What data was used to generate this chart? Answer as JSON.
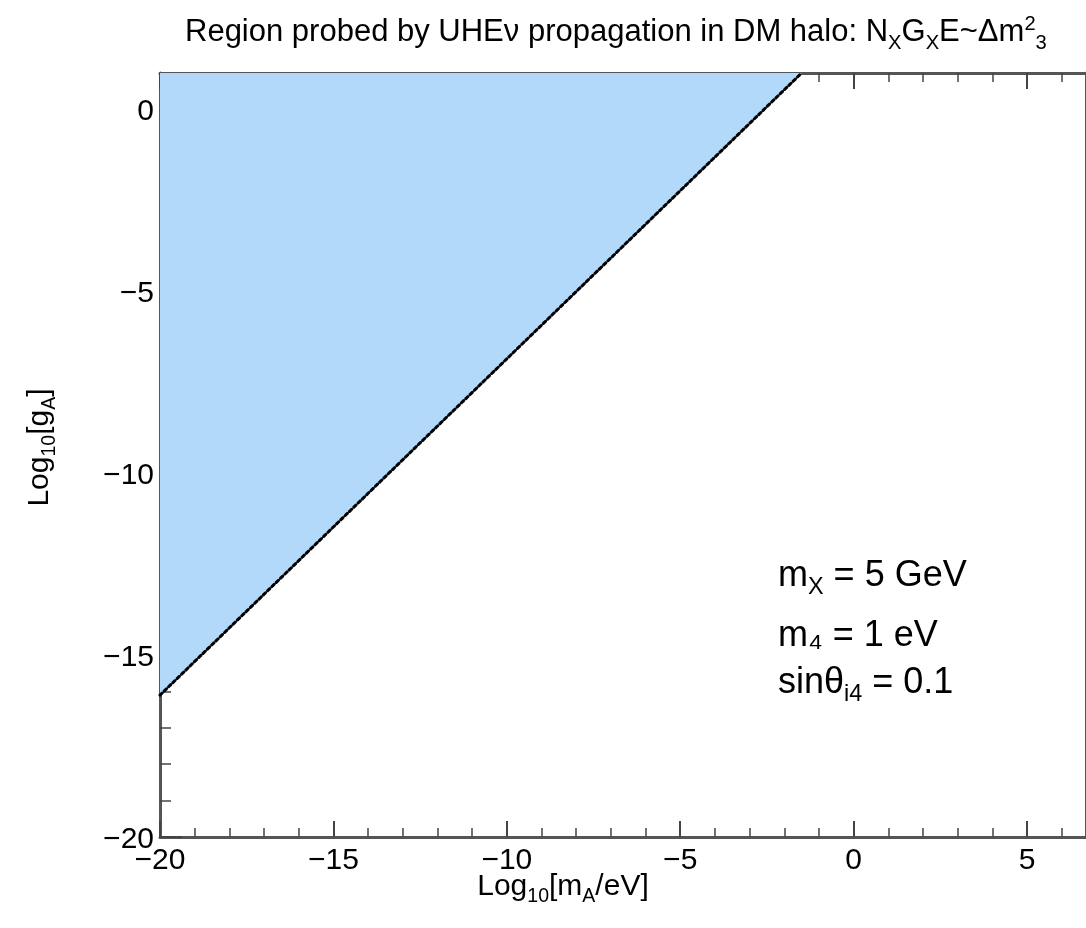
{
  "chart_data": {
    "type": "line",
    "title": "Region probed by UHEν propagation in DM halo: N$_{X}$G$_{X}$E~Δm$^{2}$$_{3}$",
    "xlabel": "Log$_{10}$[m$_{A}$/eV]",
    "ylabel": "Log$_{10}$[g$_{A}$]",
    "series": [
      {
        "type": "line",
        "color": "#000000",
        "line_style": "dotted",
        "x": [
          -20,
          -1.5
        ],
        "values": [
          -16.1,
          1
        ],
        "lower": [
          -16.1,
          1
        ],
        "upper": [
          1,
          1
        ]
      }
    ],
    "xlim": [
      -20,
      6.7
    ],
    "xticks": [
      -20,
      -15,
      -10,
      -5,
      0,
      5
    ],
    "ylim": [
      -20,
      1
    ],
    "yticks": [
      -20,
      -15,
      -10,
      -5,
      0
    ],
    "grid": false,
    "marker": "none",
    "annotations": [
      "m$_{X}$ = 5 GeV",
      "m₄ = 1 eV",
      "sinθ$_{i4}$ = 0.1"
    ]
  }
}
